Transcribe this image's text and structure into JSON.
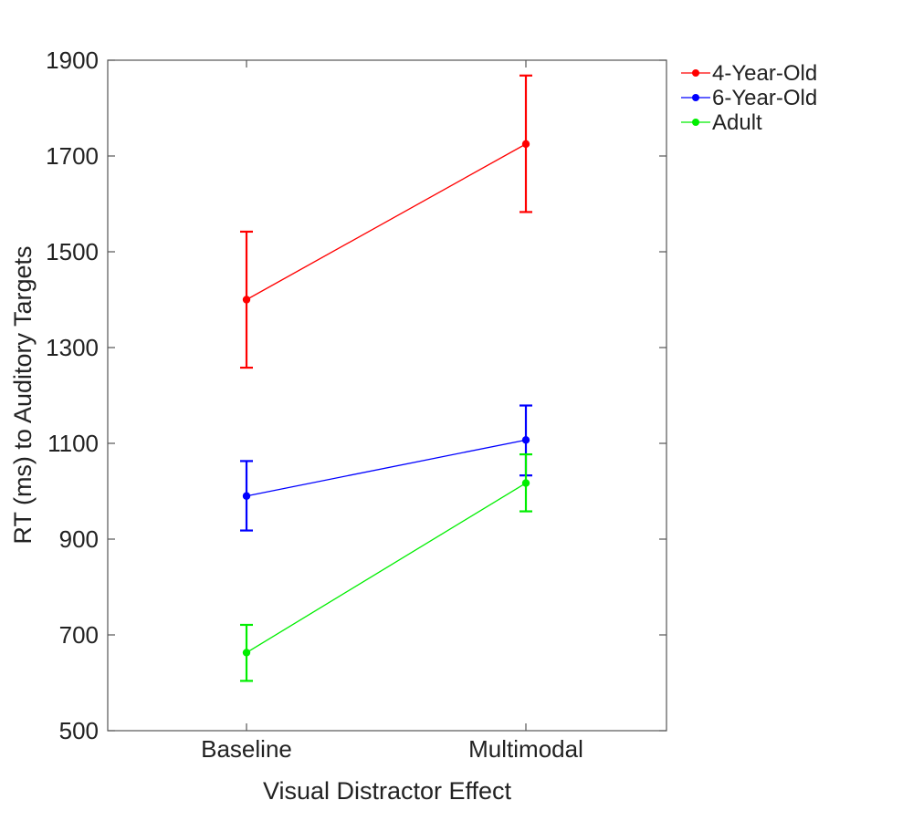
{
  "chart_data": {
    "type": "line",
    "xlabel": "Visual Distractor Effect",
    "ylabel": "RT (ms) to Auditory Targets",
    "categories": [
      "Baseline",
      "Multimodal"
    ],
    "ylim": [
      500,
      1900
    ],
    "yticks": [
      500,
      700,
      900,
      1100,
      1300,
      1500,
      1700,
      1900
    ],
    "grid": false,
    "legend_position": "outside top-right",
    "series": [
      {
        "name": "4-Year-Old",
        "color": "#ff0000",
        "values": [
          1400,
          1725
        ],
        "error": [
          [
            1258,
            1542
          ],
          [
            1583,
            1868
          ]
        ]
      },
      {
        "name": "6-Year-Old",
        "color": "#0000ff",
        "values": [
          990,
          1107
        ],
        "error": [
          [
            918,
            1063
          ],
          [
            1033,
            1179
          ]
        ]
      },
      {
        "name": "Adult",
        "color": "#00ee00",
        "values": [
          663,
          1017
        ],
        "error": [
          [
            604,
            721
          ],
          [
            958,
            1077
          ]
        ]
      }
    ]
  }
}
